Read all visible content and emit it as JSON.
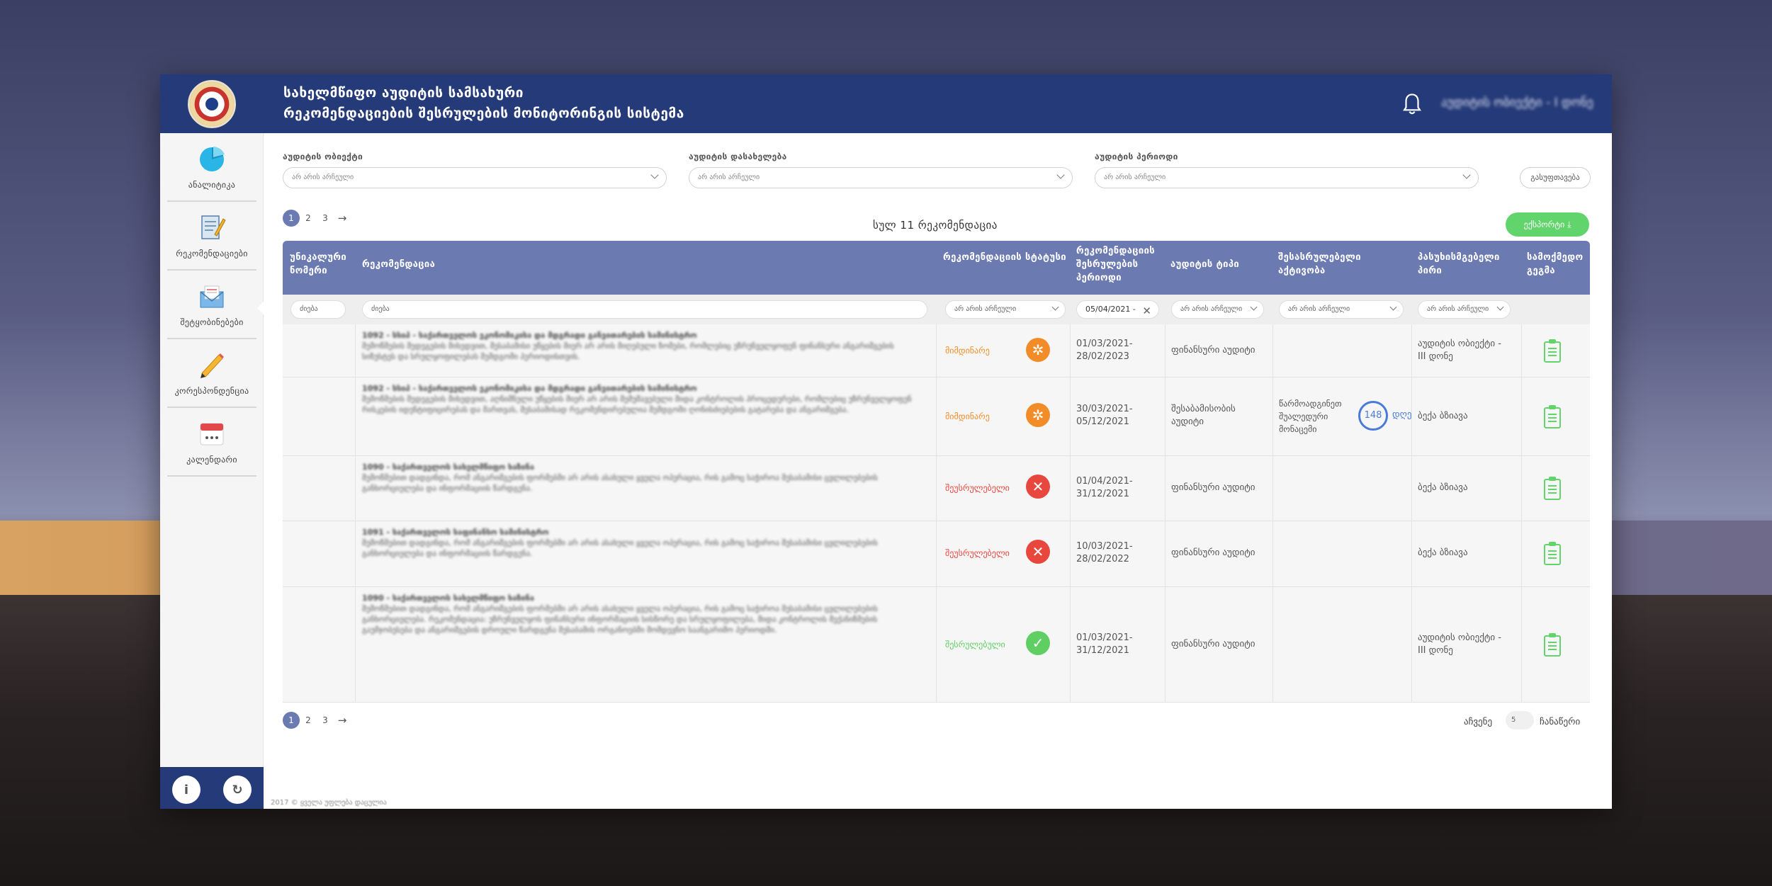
{
  "header": {
    "org_title": "სახელმწიფო აუდიტის სამსახური",
    "system_title": "რეკომენდაციების შესრულების მონიტორინგის სისტემა",
    "user_name": "აუდიტის ობიექტი - I დონე"
  },
  "sidebar": {
    "items": [
      {
        "label": "ანალიტიკა",
        "icon": "pie-chart-icon"
      },
      {
        "label": "რეკომენდაციები",
        "icon": "document-pen-icon"
      },
      {
        "label": "შეტყობინებები",
        "icon": "envelope-icon"
      },
      {
        "label": "კორესპონდენცია",
        "icon": "pencil-icon"
      },
      {
        "label": "კალენდარი",
        "icon": "calendar-icon"
      }
    ],
    "footer_buttons": [
      {
        "label": "i",
        "icon": "info-icon"
      },
      {
        "label": "↻",
        "icon": "phone-icon"
      }
    ]
  },
  "filters": {
    "audit_object": {
      "label": "აუდიტის ობიექტი",
      "value": "არ არის არჩეული"
    },
    "audit_name": {
      "label": "აუდიტის დასახელება",
      "value": "არ არის არჩეული"
    },
    "audit_period": {
      "label": "აუდიტის პერიოდი",
      "value": "არ არის არჩეული"
    },
    "reset_label": "გასუფთავება"
  },
  "pager": {
    "pages": [
      "1",
      "2",
      "3"
    ],
    "active": "1",
    "next_icon": "arrow-right-icon"
  },
  "total_label": "სულ 11 რეკომენდაცია",
  "export_label": "ექსპორტი",
  "table": {
    "headers": {
      "unique_number": "უნიკალური ნომერი",
      "recommendation": "რეკომენდაცია",
      "status": "რეკომენდაციის სტატუსი",
      "period": "რეკომენდაციის შესრულების პერიოდი",
      "audit_type": "აუდიტის ტიპი",
      "performed_action": "შესასრულებელი აქტივობა",
      "responsible": "პასუხისმგებელი პირი",
      "action_plan": "სამოქმედო გეგმა"
    },
    "filters": {
      "search_short": "ძიება",
      "search": "ძიება",
      "status": "არ არის არჩეული",
      "date": "05/04/2021 -",
      "audit_type": "არ არის არჩეული",
      "action": "არ არის არჩეული",
      "responsible": "არ არის არჩეული"
    },
    "rows": [
      {
        "title": "1092 - სსიპ - საქართველოს ეკონომიკისა და მდგრადი განვითარების სამინისტრო",
        "text": "შემოწმების შედეგების მიხედვით, შესაბამისი უწყების მიერ არ არის მიღებული ზომები, რომლებიც უზრუნველყოფენ ფინანსური ანგარიშგების სიზუსტეს და სრულყოფილებას შემდგომი პერიოდისთვის.",
        "status": "მიმდინარე",
        "status_color": "#f28c28",
        "status_icon": "in-progress-icon",
        "period": "01/03/2021-\n28/02/2023",
        "audit_type": "ფინანსური აუდიტი",
        "action": "",
        "action_days": "",
        "responsible": "აუდიტის ობიექტი - III დონე"
      },
      {
        "title": "1092 - სსიპ - საქართველოს ეკონომიკისა და მდგრადი განვითარების სამინისტრო",
        "text": "შემოწმების შედეგების მიხედვით, აღნიშნული უწყების მიერ არ არის შემუშავებული შიდა კონტროლის პროცედურები, რომლებიც უზრუნველყოფენ რისკების იდენტიფიცირებას და მართვას, შესაბამისად რეკომენდირებულია შემდგომი ღონისძიებების გატარება და ანგარიშგება.",
        "status": "მიმდინარე",
        "status_color": "#f28c28",
        "status_icon": "in-progress-icon",
        "period": "30/03/2021-\n05/12/2021",
        "audit_type": "შესაბამისობის აუდიტი",
        "action": "წარმოადგინეთ შუალედური მონაცემი",
        "action_days": "148",
        "action_unit": "დღე",
        "responsible": "ბექა ბზიავა"
      },
      {
        "title": "1090 - საქართველოს სახელმწიფო ხაზინა",
        "text": "შემოწმებით დადგინდა, რომ ანგარიშგების ფორმებში არ არის ასახული ყველა ოპერაცია, რის გამოც საჭიროა შესაბამისი ცვლილებების განხორციელება და ინფორმაციის წარდგენა.",
        "status": "შეუსრულებელი",
        "status_color": "#e8473e",
        "status_icon": "failed-icon",
        "period": "01/04/2021-\n31/12/2021",
        "audit_type": "ფინანსური აუდიტი",
        "action": "",
        "action_days": "",
        "responsible": "ბექა ბზიავა"
      },
      {
        "title": "1091 - საქართველოს საფინანსო სამინისტრო",
        "text": "შემოწმებით დადგინდა, რომ ანგარიშგების ფორმებში არ არის ასახული ყველა ოპერაცია, რის გამოც საჭიროა შესაბამისი ცვლილებების განხორციელება და ინფორმაციის წარდგენა.",
        "status": "შეუსრულებელი",
        "status_color": "#e8473e",
        "status_icon": "failed-icon",
        "period": "10/03/2021-\n28/02/2022",
        "audit_type": "ფინანსური აუდიტი",
        "action": "",
        "action_days": "",
        "responsible": "ბექა ბზიავა"
      },
      {
        "title": "1090 - საქართველოს სახელმწიფო ხაზინა",
        "text": "შემოწმებით დადგინდა, რომ ანგარიშგების ფორმებში არ არის ასახული ყველა ოპერაცია, რის გამოც საჭიროა შესაბამისი ცვლილებების განხორციელება. რეკომენდაცია: უზრუნველყოს ფინანსური ინფორმაციის სისწორე და სრულყოფილება, შიდა კონტროლის მექანიზმების გაუმჯობესება და ანგარიშგების დროული წარდგენა შესაბამის ორგანოებში მომდევნო საანგარიშო პერიოდში.",
        "status": "შესრულებული",
        "status_color": "#5fcf63",
        "status_icon": "done-icon",
        "period": "01/03/2021-\n31/12/2021",
        "audit_type": "ფინანსური აუდიტი",
        "action": "",
        "action_days": "",
        "responsible": "აუდიტის ობიექტი - III დონე"
      }
    ]
  },
  "bottom": {
    "show_label": "აჩვენე",
    "show_value": "5",
    "show_suffix": "ჩანაწერი"
  },
  "footer": {
    "text": "2017 © ყველა უფლება დაცულია"
  }
}
